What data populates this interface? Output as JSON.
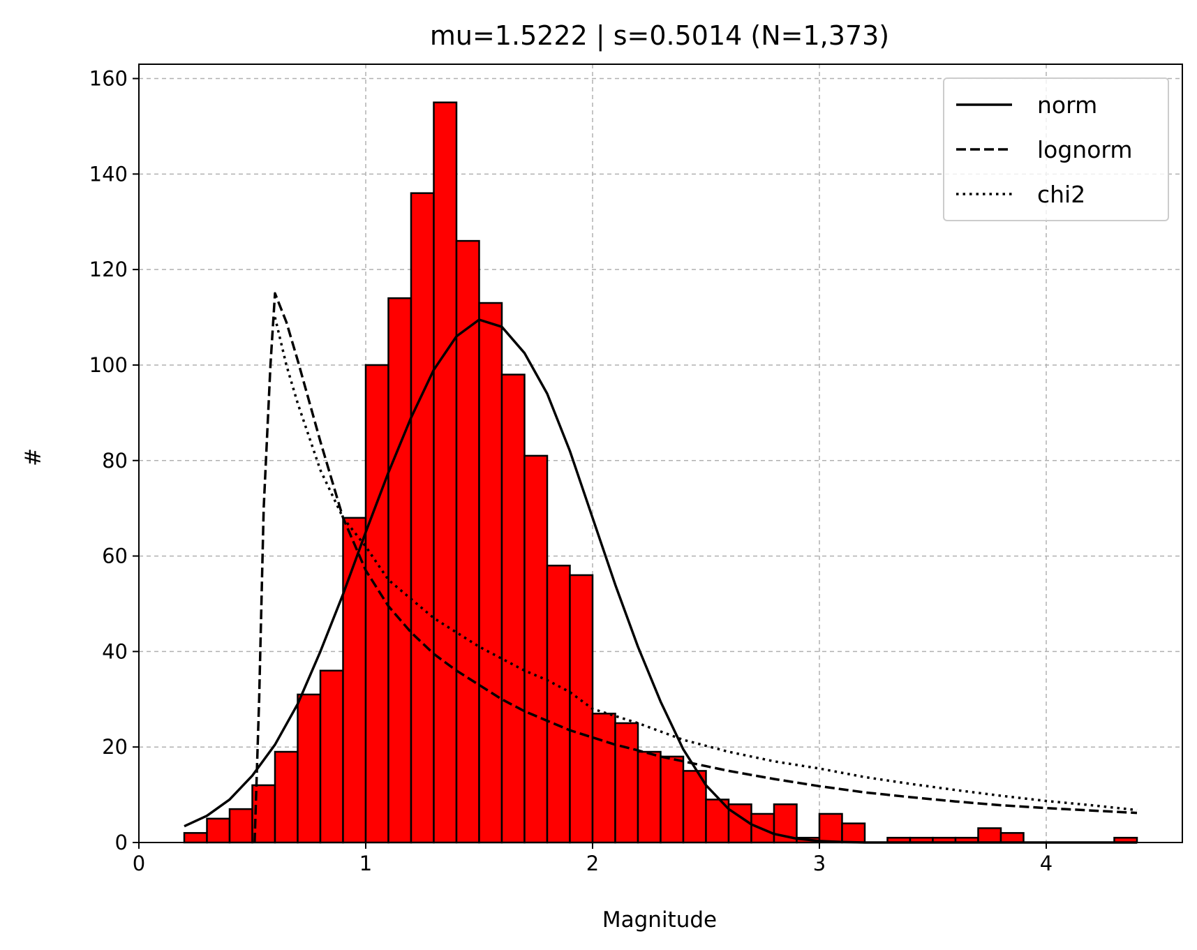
{
  "chart_data": {
    "type": "bar",
    "title": "mu=1.5222 | s=0.5014 (N=1,373)",
    "xlabel": "Magnitude",
    "ylabel": "#",
    "xlim": [
      0,
      4.6
    ],
    "ylim": [
      0,
      163
    ],
    "grid": true,
    "legend_placement": "top-right",
    "bar_color": "#ff0000",
    "edge_color": "#000000",
    "x_ticks": [
      {
        "v": 0,
        "label": "0"
      },
      {
        "v": 1,
        "label": "1"
      },
      {
        "v": 2,
        "label": "2"
      },
      {
        "v": 3,
        "label": "3"
      },
      {
        "v": 4,
        "label": "4"
      }
    ],
    "y_ticks": [
      {
        "v": 0,
        "label": "0"
      },
      {
        "v": 20,
        "label": "20"
      },
      {
        "v": 40,
        "label": "40"
      },
      {
        "v": 60,
        "label": "60"
      },
      {
        "v": 80,
        "label": "80"
      },
      {
        "v": 100,
        "label": "100"
      },
      {
        "v": 120,
        "label": "120"
      },
      {
        "v": 140,
        "label": "140"
      },
      {
        "v": 160,
        "label": "160"
      }
    ],
    "bins": [
      {
        "x0": 0.2,
        "x1": 0.3,
        "count": 2
      },
      {
        "x0": 0.3,
        "x1": 0.4,
        "count": 5
      },
      {
        "x0": 0.4,
        "x1": 0.5,
        "count": 7
      },
      {
        "x0": 0.5,
        "x1": 0.6,
        "count": 12
      },
      {
        "x0": 0.6,
        "x1": 0.7,
        "count": 19
      },
      {
        "x0": 0.7,
        "x1": 0.8,
        "count": 31
      },
      {
        "x0": 0.8,
        "x1": 0.9,
        "count": 36
      },
      {
        "x0": 0.9,
        "x1": 1.0,
        "count": 68
      },
      {
        "x0": 1.0,
        "x1": 1.1,
        "count": 100
      },
      {
        "x0": 1.1,
        "x1": 1.2,
        "count": 114
      },
      {
        "x0": 1.2,
        "x1": 1.3,
        "count": 136
      },
      {
        "x0": 1.3,
        "x1": 1.4,
        "count": 155
      },
      {
        "x0": 1.4,
        "x1": 1.5,
        "count": 126
      },
      {
        "x0": 1.5,
        "x1": 1.6,
        "count": 113
      },
      {
        "x0": 1.6,
        "x1": 1.7,
        "count": 98
      },
      {
        "x0": 1.7,
        "x1": 1.8,
        "count": 81
      },
      {
        "x0": 1.8,
        "x1": 1.9,
        "count": 58
      },
      {
        "x0": 1.9,
        "x1": 2.0,
        "count": 56
      },
      {
        "x0": 2.0,
        "x1": 2.1,
        "count": 27
      },
      {
        "x0": 2.1,
        "x1": 2.2,
        "count": 25
      },
      {
        "x0": 2.2,
        "x1": 2.3,
        "count": 19
      },
      {
        "x0": 2.3,
        "x1": 2.4,
        "count": 18
      },
      {
        "x0": 2.4,
        "x1": 2.5,
        "count": 15
      },
      {
        "x0": 2.5,
        "x1": 2.6,
        "count": 9
      },
      {
        "x0": 2.6,
        "x1": 2.7,
        "count": 8
      },
      {
        "x0": 2.7,
        "x1": 2.8,
        "count": 6
      },
      {
        "x0": 2.8,
        "x1": 2.9,
        "count": 8
      },
      {
        "x0": 2.9,
        "x1": 3.0,
        "count": 1
      },
      {
        "x0": 3.0,
        "x1": 3.1,
        "count": 6
      },
      {
        "x0": 3.1,
        "x1": 3.2,
        "count": 4
      },
      {
        "x0": 3.3,
        "x1": 3.4,
        "count": 1
      },
      {
        "x0": 3.4,
        "x1": 3.5,
        "count": 1
      },
      {
        "x0": 3.5,
        "x1": 3.6,
        "count": 1
      },
      {
        "x0": 3.6,
        "x1": 3.7,
        "count": 1
      },
      {
        "x0": 3.7,
        "x1": 3.8,
        "count": 3
      },
      {
        "x0": 3.8,
        "x1": 3.9,
        "count": 2
      },
      {
        "x0": 4.3,
        "x1": 4.4,
        "count": 1
      }
    ],
    "series": [
      {
        "name": "norm",
        "style": "solid",
        "x": [
          0.2,
          0.3,
          0.4,
          0.5,
          0.6,
          0.7,
          0.8,
          0.9,
          1.0,
          1.1,
          1.2,
          1.3,
          1.4,
          1.5,
          1.6,
          1.7,
          1.8,
          1.9,
          2.0,
          2.1,
          2.2,
          2.3,
          2.4,
          2.5,
          2.6,
          2.7,
          2.8,
          2.9,
          3.0,
          3.1,
          3.2,
          3.3,
          3.4,
          3.6,
          3.8,
          4.0,
          4.2,
          4.4
        ],
        "values": [
          3.4,
          5.6,
          9,
          14,
          20.5,
          29,
          40,
          52,
          65,
          77.5,
          89,
          99,
          106,
          109.5,
          108,
          102.5,
          94,
          82,
          68,
          54,
          41,
          29.5,
          19.5,
          12,
          7,
          3.8,
          1.8,
          0.8,
          0.3,
          0.1,
          0,
          0,
          0,
          0,
          0,
          0,
          0,
          0
        ]
      },
      {
        "name": "lognorm",
        "style": "dashed",
        "x": [
          0.51,
          0.53,
          0.55,
          0.58,
          0.6,
          0.65,
          0.7,
          0.8,
          0.9,
          1.0,
          1.1,
          1.2,
          1.3,
          1.4,
          1.5,
          1.6,
          1.7,
          1.8,
          1.9,
          2.0,
          2.1,
          2.2,
          2.3,
          2.4,
          2.5,
          2.6,
          2.8,
          3.0,
          3.2,
          3.4,
          3.6,
          3.8,
          4.0,
          4.2,
          4.4
        ],
        "values": [
          0,
          30,
          70,
          100,
          115,
          109,
          101,
          84,
          68,
          57,
          49.5,
          44,
          39.5,
          36,
          33,
          30,
          27.5,
          25.5,
          23.5,
          22,
          20.5,
          19.3,
          18,
          17,
          16,
          15,
          13.3,
          11.8,
          10.5,
          9.5,
          8.6,
          7.8,
          7.2,
          6.7,
          6.2
        ]
      },
      {
        "name": "chi2",
        "style": "dotted",
        "x": [
          0.6,
          0.65,
          0.7,
          0.8,
          0.9,
          1.0,
          1.1,
          1.2,
          1.3,
          1.4,
          1.5,
          1.6,
          1.7,
          1.8,
          1.9,
          2.0,
          2.2,
          2.4,
          2.6,
          2.8,
          3.0,
          3.2,
          3.4,
          3.6,
          3.8,
          4.0,
          4.2,
          4.4
        ],
        "values": [
          110,
          100,
          92,
          78,
          68,
          62,
          55,
          51,
          47,
          44,
          41,
          38.5,
          36,
          34,
          31.5,
          28,
          25,
          21.5,
          19,
          17,
          15.5,
          13.7,
          12.3,
          11,
          9.8,
          8.7,
          7.8,
          6.8
        ]
      }
    ]
  }
}
